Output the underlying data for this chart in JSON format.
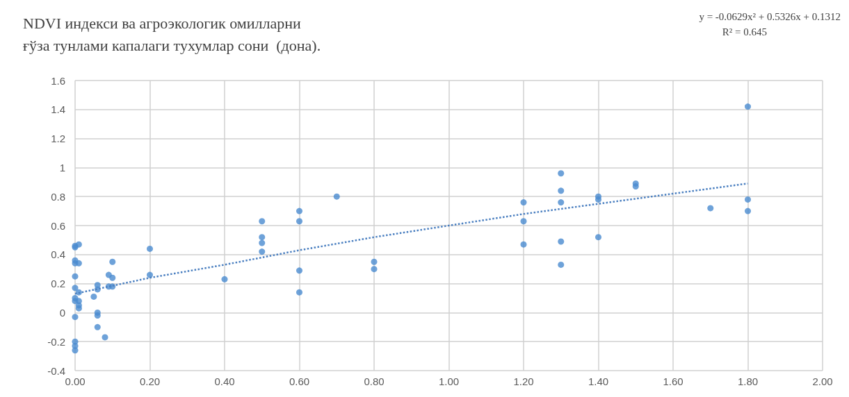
{
  "chart_data": {
    "type": "scatter",
    "title": "NDVI индекси ва агроэкологик омилларни\nғўза тунлами капалаги тухумлар сони  (дона).",
    "annotations": [
      "y = -0.0629x² + 0.5326x + 0.1312",
      "R² = 0.645"
    ],
    "xlim": [
      0,
      2
    ],
    "xticks": [
      {
        "value": 0,
        "label": "0.00"
      },
      {
        "value": 0.2,
        "label": "0.20"
      },
      {
        "value": 0.4,
        "label": "0.40"
      },
      {
        "value": 0.6,
        "label": "0.60"
      },
      {
        "value": 0.8,
        "label": "0.80"
      },
      {
        "value": 1,
        "label": "1.00"
      },
      {
        "value": 1.2,
        "label": "1.20"
      },
      {
        "value": 1.4,
        "label": "1.40"
      },
      {
        "value": 1.6,
        "label": "1.60"
      },
      {
        "value": 1.8,
        "label": "1.80"
      },
      {
        "value": 2,
        "label": "2.00"
      }
    ],
    "ylim": [
      -0.4,
      1.6
    ],
    "yticks": [
      -0.4,
      -0.2,
      0,
      0.2,
      0.4,
      0.6,
      0.8,
      1,
      1.2,
      1.4,
      1.6
    ],
    "grid": true,
    "series": [
      {
        "type": "scatter",
        "color": "#4a8bd0",
        "marker": "circle",
        "x": [
          0,
          0,
          0,
          0,
          0,
          0,
          0,
          0,
          0,
          0,
          0,
          0,
          0.01,
          0.01,
          0.01,
          0.01,
          0.01,
          0.01,
          0.05,
          0.06,
          0.06,
          0.06,
          0.06,
          0.06,
          0.08,
          0.09,
          0.09,
          0.1,
          0.1,
          0.1,
          0.2,
          0.2,
          0.4,
          0.5,
          0.5,
          0.5,
          0.5,
          0.6,
          0.6,
          0.6,
          0.6,
          0.7,
          0.8,
          0.8,
          1.2,
          1.2,
          1.2,
          1.3,
          1.3,
          1.3,
          1.3,
          1.3,
          1.4,
          1.4,
          1.4,
          1.5,
          1.5,
          1.7,
          1.8,
          1.8,
          1.8
        ],
        "values": [
          0.45,
          0.46,
          0.36,
          0.34,
          0.25,
          0.17,
          0.1,
          0.08,
          -0.03,
          -0.2,
          -0.23,
          -0.26,
          0.47,
          0.34,
          0.14,
          0.08,
          0.05,
          0.03,
          0.11,
          0.19,
          0.16,
          0,
          -0.02,
          -0.1,
          -0.17,
          0.26,
          0.18,
          0.35,
          0.24,
          0.18,
          0.44,
          0.26,
          0.23,
          0.63,
          0.52,
          0.48,
          0.42,
          0.7,
          0.63,
          0.29,
          0.14,
          0.8,
          0.35,
          0.3,
          0.76,
          0.63,
          0.47,
          0.96,
          0.84,
          0.76,
          0.49,
          0.33,
          0.8,
          0.78,
          0.52,
          0.89,
          0.87,
          0.72,
          1.42,
          0.78,
          0.7
        ]
      },
      {
        "type": "line",
        "color": "#4a7fc0",
        "marker": "none",
        "line_style": "dotted",
        "x": [
          0,
          0.2,
          0.4,
          0.6,
          0.8,
          1,
          1.2,
          1.4,
          1.6,
          1.8
        ],
        "values": [
          0.13,
          0.24,
          0.33,
          0.43,
          0.52,
          0.6,
          0.68,
          0.75,
          0.82,
          0.89
        ]
      }
    ]
  }
}
